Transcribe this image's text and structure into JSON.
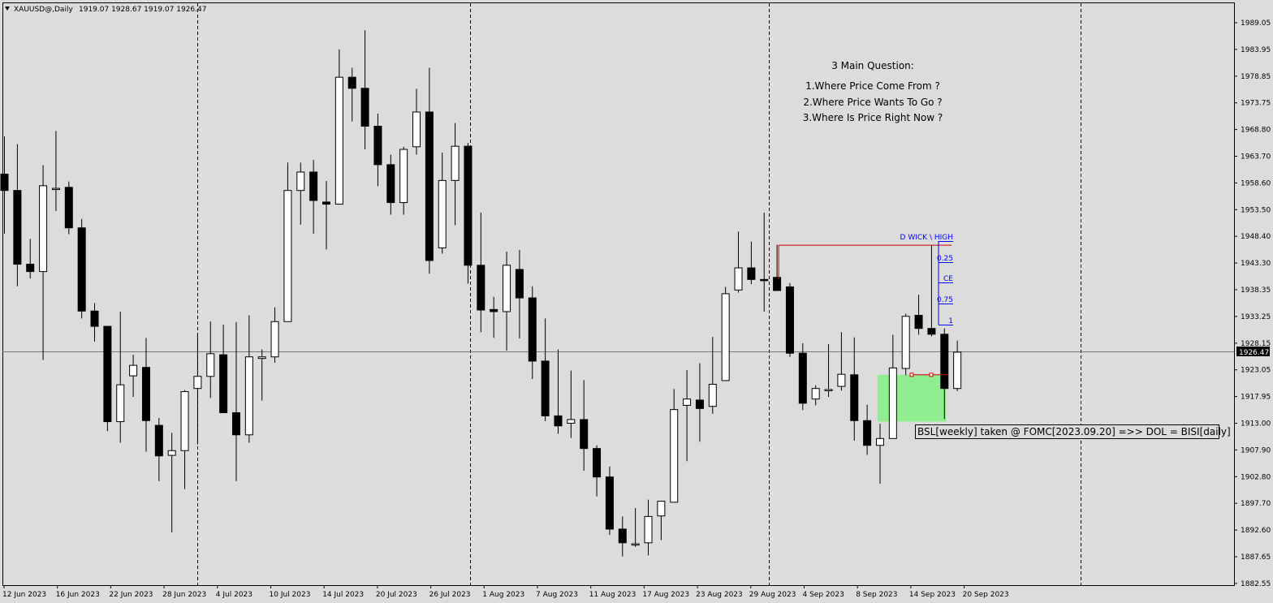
{
  "header": {
    "arrow_icon": "triangle-down-icon",
    "symbol": "XAUUSD@,Daily",
    "ohlc": "1919.07 1928.67 1919.07 1926.47"
  },
  "notes": {
    "title": "3 Main Question:",
    "q1": "1.Where Price Come From ?",
    "q2": "2.Where Price Wants To Go ?",
    "q3": "3.Where Is Price Right Now ?"
  },
  "fib_labels": {
    "high": "D WICK \\ HIGH",
    "q25": "0.25",
    "ce": "CE",
    "q75": "0.75",
    "one": "1"
  },
  "annotation": "BSL[weekly] taken @ FOMC[2023.09.20] =>> DOL = BISI[daily]",
  "current_price_label": "1926.47",
  "colors": {
    "background": "#dcdcdc",
    "bull_body": "#ffffff",
    "bear_body": "#000000",
    "fib_line": "#cc0000",
    "fib_text": "#0000ff",
    "fvg_fill": "#90ee90",
    "price_tag_bg": "#000000"
  },
  "chart_data": {
    "type": "candlestick",
    "ylim": [
      1885.0,
      1990.5
    ],
    "y_ticks": [
      "1989.05",
      "1983.95",
      "1978.85",
      "1973.75",
      "1968.80",
      "1963.70",
      "1958.60",
      "1953.50",
      "1948.40",
      "1943.30",
      "1938.35",
      "1933.25",
      "1928.15",
      "1923.05",
      "1917.95",
      "1913.00",
      "1907.90",
      "1902.80",
      "1897.70",
      "1892.60",
      "1887.65",
      "1882.55"
    ],
    "x_labels": [
      "12 Jun 2023",
      "16 Jun 2023",
      "22 Jun 2023",
      "28 Jun 2023",
      "4 Jul 2023",
      "10 Jul 2023",
      "14 Jul 2023",
      "20 Jul 2023",
      "26 Jul 2023",
      "1 Aug 2023",
      "7 Aug 2023",
      "11 Aug 2023",
      "17 Aug 2023",
      "23 Aug 2023",
      "29 Aug 2023",
      "4 Sep 2023",
      "8 Sep 2023",
      "14 Sep 2023",
      "20 Sep 2023"
    ],
    "current_price": 1926.47,
    "fib_high": 1946.8,
    "fvg": {
      "top": 1922.2,
      "bottom": 1913.3
    },
    "candles": [
      {
        "o": 1960.3,
        "h": 1967.5,
        "l": 1949.0,
        "c": 1957.2
      },
      {
        "o": 1957.2,
        "h": 1966.0,
        "l": 1939.0,
        "c": 1943.2
      },
      {
        "o": 1943.2,
        "h": 1948.0,
        "l": 1940.5,
        "c": 1941.8
      },
      {
        "o": 1941.8,
        "h": 1962.0,
        "l": 1925.0,
        "c": 1958.1
      },
      {
        "o": 1957.6,
        "h": 1968.5,
        "l": 1953.3,
        "c": 1957.6
      },
      {
        "o": 1957.8,
        "h": 1958.9,
        "l": 1948.9,
        "c": 1950.1
      },
      {
        "o": 1950.1,
        "h": 1951.8,
        "l": 1932.9,
        "c": 1934.3
      },
      {
        "o": 1934.3,
        "h": 1935.8,
        "l": 1928.5,
        "c": 1931.4
      },
      {
        "o": 1931.4,
        "h": 1931.4,
        "l": 1911.5,
        "c": 1913.3
      },
      {
        "o": 1913.3,
        "h": 1934.2,
        "l": 1909.3,
        "c": 1920.3
      },
      {
        "o": 1922.0,
        "h": 1926.0,
        "l": 1918.0,
        "c": 1924.0
      },
      {
        "o": 1923.6,
        "h": 1929.2,
        "l": 1907.6,
        "c": 1913.5
      },
      {
        "o": 1912.6,
        "h": 1914.0,
        "l": 1902.0,
        "c": 1906.8
      },
      {
        "o": 1906.9,
        "h": 1911.2,
        "l": 1892.3,
        "c": 1907.8
      },
      {
        "o": 1907.8,
        "h": 1919.3,
        "l": 1900.5,
        "c": 1919.0
      },
      {
        "o": 1919.6,
        "h": 1930.0,
        "l": 1909.0,
        "c": 1921.9
      },
      {
        "o": 1921.9,
        "h": 1932.3,
        "l": 1917.8,
        "c": 1926.2
      },
      {
        "o": 1926.0,
        "h": 1931.7,
        "l": 1916.0,
        "c": 1915.0
      },
      {
        "o": 1915.0,
        "h": 1932.2,
        "l": 1902.0,
        "c": 1910.8
      },
      {
        "o": 1910.8,
        "h": 1933.5,
        "l": 1909.3,
        "c": 1925.6
      },
      {
        "o": 1925.3,
        "h": 1927.0,
        "l": 1917.3,
        "c": 1925.6
      },
      {
        "o": 1925.6,
        "h": 1935.0,
        "l": 1924.5,
        "c": 1932.3
      },
      {
        "o": 1932.3,
        "h": 1962.5,
        "l": 1932.3,
        "c": 1957.2
      },
      {
        "o": 1957.2,
        "h": 1962.5,
        "l": 1950.7,
        "c": 1960.7
      },
      {
        "o": 1960.7,
        "h": 1963.0,
        "l": 1949.0,
        "c": 1955.3
      },
      {
        "o": 1955.0,
        "h": 1959.0,
        "l": 1946.0,
        "c": 1954.6
      },
      {
        "o": 1954.6,
        "h": 1984.0,
        "l": 1954.6,
        "c": 1978.7
      },
      {
        "o": 1978.7,
        "h": 1980.5,
        "l": 1970.3,
        "c": 1976.6
      },
      {
        "o": 1976.6,
        "h": 1987.6,
        "l": 1965.0,
        "c": 1969.4
      },
      {
        "o": 1969.4,
        "h": 1971.8,
        "l": 1958.0,
        "c": 1962.1
      },
      {
        "o": 1962.1,
        "h": 1964.0,
        "l": 1952.6,
        "c": 1954.9
      },
      {
        "o": 1954.9,
        "h": 1965.5,
        "l": 1952.6,
        "c": 1965.0
      },
      {
        "o": 1965.5,
        "h": 1976.5,
        "l": 1964.0,
        "c": 1972.1
      },
      {
        "o": 1972.1,
        "h": 1980.5,
        "l": 1941.4,
        "c": 1943.9
      },
      {
        "o": 1946.3,
        "h": 1964.4,
        "l": 1945.2,
        "c": 1959.1
      },
      {
        "o": 1959.1,
        "h": 1970.0,
        "l": 1950.6,
        "c": 1965.6
      },
      {
        "o": 1965.6,
        "h": 1966.2,
        "l": 1939.5,
        "c": 1943.0
      },
      {
        "o": 1943.0,
        "h": 1953.0,
        "l": 1930.3,
        "c": 1934.5
      },
      {
        "o": 1934.6,
        "h": 1937.0,
        "l": 1929.2,
        "c": 1934.2
      },
      {
        "o": 1934.2,
        "h": 1945.6,
        "l": 1926.8,
        "c": 1943.0
      },
      {
        "o": 1942.2,
        "h": 1945.9,
        "l": 1929.1,
        "c": 1936.8
      },
      {
        "o": 1936.8,
        "h": 1939.0,
        "l": 1921.4,
        "c": 1924.8
      },
      {
        "o": 1924.8,
        "h": 1932.9,
        "l": 1913.4,
        "c": 1914.4
      },
      {
        "o": 1914.4,
        "h": 1927.0,
        "l": 1911.0,
        "c": 1912.5
      },
      {
        "o": 1913.0,
        "h": 1923.0,
        "l": 1910.2,
        "c": 1913.7
      },
      {
        "o": 1913.7,
        "h": 1921.2,
        "l": 1904.0,
        "c": 1908.2
      },
      {
        "o": 1908.2,
        "h": 1908.8,
        "l": 1899.1,
        "c": 1902.8
      },
      {
        "o": 1902.8,
        "h": 1904.8,
        "l": 1891.8,
        "c": 1892.9
      },
      {
        "o": 1892.9,
        "h": 1895.3,
        "l": 1887.7,
        "c": 1890.3
      },
      {
        "o": 1890.1,
        "h": 1896.9,
        "l": 1889.5,
        "c": 1890.1
      },
      {
        "o": 1890.3,
        "h": 1898.5,
        "l": 1887.9,
        "c": 1895.3
      },
      {
        "o": 1895.4,
        "h": 1898.2,
        "l": 1890.8,
        "c": 1898.2
      },
      {
        "o": 1898.0,
        "h": 1919.5,
        "l": 1898.0,
        "c": 1915.6
      },
      {
        "o": 1916.4,
        "h": 1923.1,
        "l": 1905.8,
        "c": 1917.6
      },
      {
        "o": 1917.4,
        "h": 1924.4,
        "l": 1909.5,
        "c": 1915.8
      },
      {
        "o": 1916.2,
        "h": 1929.4,
        "l": 1914.8,
        "c": 1920.4
      },
      {
        "o": 1921.1,
        "h": 1938.9,
        "l": 1921.1,
        "c": 1937.6
      },
      {
        "o": 1938.3,
        "h": 1949.4,
        "l": 1937.8,
        "c": 1942.5
      },
      {
        "o": 1942.5,
        "h": 1947.5,
        "l": 1939.4,
        "c": 1940.3
      },
      {
        "o": 1940.3,
        "h": 1953.0,
        "l": 1934.2,
        "c": 1940.2
      },
      {
        "o": 1940.7,
        "h": 1946.9,
        "l": 1938.7,
        "c": 1938.2
      },
      {
        "o": 1938.9,
        "h": 1939.6,
        "l": 1925.6,
        "c": 1926.3
      },
      {
        "o": 1926.3,
        "h": 1928.2,
        "l": 1915.5,
        "c": 1916.8
      },
      {
        "o": 1917.6,
        "h": 1920.2,
        "l": 1916.4,
        "c": 1919.6
      },
      {
        "o": 1919.3,
        "h": 1928.0,
        "l": 1918.0,
        "c": 1919.4
      },
      {
        "o": 1920.0,
        "h": 1930.3,
        "l": 1919.2,
        "c": 1922.3
      },
      {
        "o": 1922.2,
        "h": 1929.3,
        "l": 1909.7,
        "c": 1913.5
      },
      {
        "o": 1913.5,
        "h": 1916.5,
        "l": 1907.0,
        "c": 1908.8
      },
      {
        "o": 1908.8,
        "h": 1912.9,
        "l": 1901.5,
        "c": 1910.1
      },
      {
        "o": 1910.1,
        "h": 1929.8,
        "l": 1910.1,
        "c": 1923.5
      },
      {
        "o": 1923.4,
        "h": 1933.8,
        "l": 1922.1,
        "c": 1933.3
      },
      {
        "o": 1933.5,
        "h": 1937.4,
        "l": 1929.8,
        "c": 1931.0
      },
      {
        "o": 1931.0,
        "h": 1946.8,
        "l": 1929.5,
        "c": 1929.9
      },
      {
        "o": 1929.9,
        "h": 1931.0,
        "l": 1913.8,
        "c": 1919.6
      },
      {
        "o": 1919.6,
        "h": 1928.7,
        "l": 1919.1,
        "c": 1926.5
      }
    ]
  }
}
